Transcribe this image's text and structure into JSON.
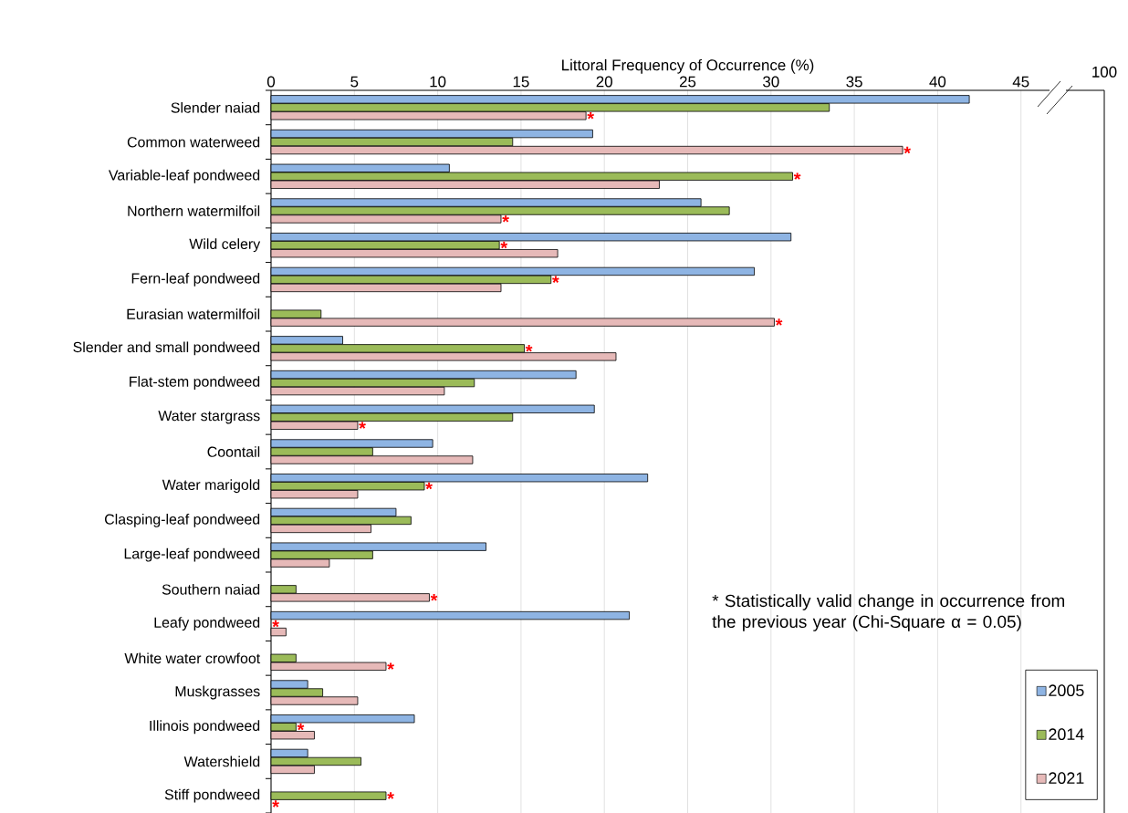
{
  "chart_data": {
    "type": "bar",
    "orientation": "horizontal",
    "xlabel": "Littoral Frequency of Occurrence (%)",
    "categories": [
      "Slender naiad",
      "Common waterweed",
      "Variable-leaf pondweed",
      "Northern watermilfoil",
      "Wild celery",
      "Fern-leaf pondweed",
      "Eurasian watermilfoil",
      "Slender and small pondweed",
      "Flat-stem pondweed",
      "Water stargrass",
      "Coontail",
      "Water marigold",
      "Clasping-leaf pondweed",
      "Large-leaf pondweed",
      "Southern naiad",
      "Leafy pondweed",
      "White water crowfoot",
      "Muskgrasses",
      "Illinois pondweed",
      "Watershield",
      "Stiff pondweed"
    ],
    "series": [
      {
        "name": "2005",
        "color": "#8eb4e3",
        "values": [
          41.9,
          19.3,
          10.7,
          25.8,
          31.2,
          29.0,
          null,
          4.3,
          18.3,
          19.4,
          9.7,
          22.6,
          7.5,
          12.9,
          null,
          21.5,
          null,
          2.2,
          8.6,
          2.2,
          null
        ]
      },
      {
        "name": "2014",
        "color": "#9bbb59",
        "values": [
          33.5,
          14.5,
          31.3,
          27.5,
          13.7,
          16.8,
          3.0,
          15.2,
          12.2,
          14.5,
          6.1,
          9.2,
          8.4,
          6.1,
          1.5,
          null,
          1.5,
          3.1,
          1.5,
          5.4,
          6.9
        ],
        "value_labels": [
          null,
          null,
          "*",
          null,
          "*",
          "*",
          null,
          "*",
          null,
          null,
          null,
          "*",
          null,
          null,
          null,
          "*",
          null,
          null,
          "*",
          null,
          "*"
        ]
      },
      {
        "name": "2021",
        "color": "#e6b9b8",
        "values": [
          18.9,
          37.9,
          23.3,
          13.8,
          17.2,
          13.8,
          30.2,
          20.7,
          10.4,
          5.2,
          12.1,
          5.2,
          6.0,
          3.5,
          9.5,
          0.9,
          6.9,
          5.2,
          2.6,
          2.6,
          null
        ],
        "value_labels": [
          "*",
          "*",
          null,
          "*",
          null,
          null,
          "*",
          null,
          null,
          "*",
          null,
          null,
          null,
          null,
          "*",
          null,
          "*",
          null,
          null,
          null,
          "*"
        ]
      }
    ],
    "xlim": [
      0,
      50
    ],
    "xticks": [
      0,
      5,
      10,
      15,
      20,
      25,
      30,
      35,
      40,
      45
    ],
    "grid": "x",
    "legend": "bottom right",
    "annotations": [
      "100",
      "* Statistically valid change in occurrence from the previous year (Chi-Square α = 0.05)"
    ]
  }
}
